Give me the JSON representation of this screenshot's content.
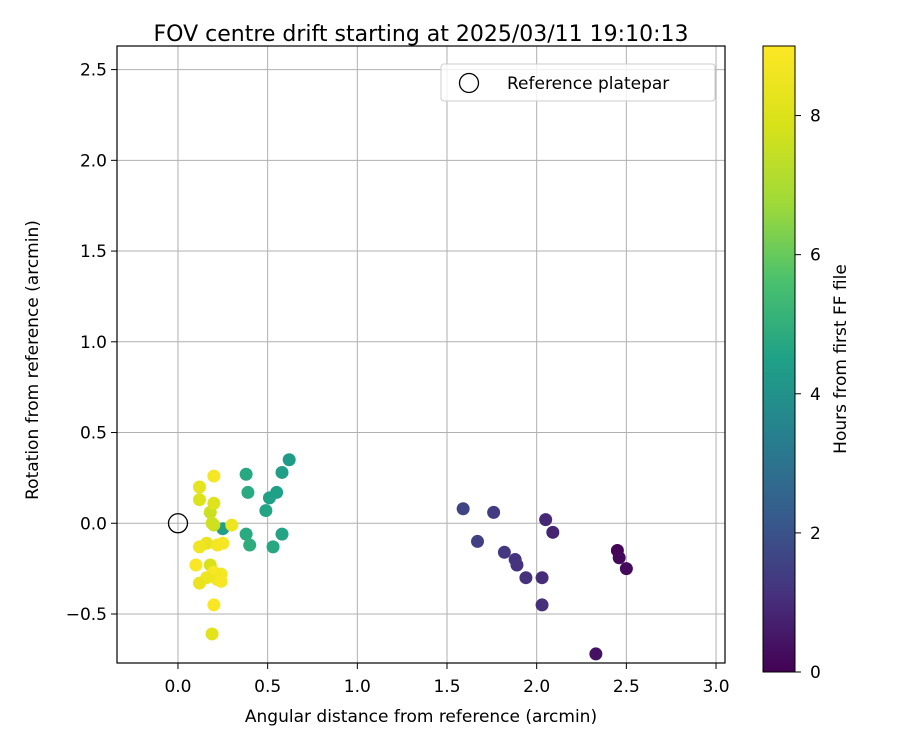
{
  "chart_data": {
    "type": "scatter",
    "title": "FOV centre drift starting at 2025/03/11 19:10:13",
    "xlabel": "Angular distance from reference (arcmin)",
    "ylabel": "Rotation from reference (arcmin)",
    "xlim": [
      -0.34,
      3.05
    ],
    "ylim": [
      -0.77,
      2.63
    ],
    "xticks": [
      0.0,
      0.5,
      1.0,
      1.5,
      2.0,
      2.5,
      3.0
    ],
    "xtick_labels": [
      "0.0",
      "0.5",
      "1.0",
      "1.5",
      "2.0",
      "2.5",
      "3.0"
    ],
    "yticks": [
      -0.5,
      0.0,
      0.5,
      1.0,
      1.5,
      2.0,
      2.5
    ],
    "ytick_labels": [
      "−0.5",
      "0.0",
      "0.5",
      "1.0",
      "1.5",
      "2.0",
      "2.5"
    ],
    "grid": true,
    "legend": {
      "placement": "top-right",
      "entries": [
        {
          "label": "Reference platepar",
          "marker": "open-circle",
          "x": 0.0,
          "y": 0.0
        }
      ]
    },
    "colorbar": {
      "label": "Hours from first FF file",
      "colormap": "viridis",
      "range": [
        0,
        9
      ],
      "ticks": [
        0,
        2,
        4,
        6,
        8
      ],
      "tick_labels": [
        "0",
        "2",
        "4",
        "6",
        "8"
      ]
    },
    "points": [
      {
        "x": 2.45,
        "y": -0.15,
        "c": 0.1
      },
      {
        "x": 2.46,
        "y": -0.19,
        "c": 0.15
      },
      {
        "x": 2.5,
        "y": -0.25,
        "c": 0.2
      },
      {
        "x": 2.33,
        "y": -0.72,
        "c": 0.4
      },
      {
        "x": 2.09,
        "y": -0.05,
        "c": 0.8
      },
      {
        "x": 2.05,
        "y": 0.02,
        "c": 0.9
      },
      {
        "x": 2.03,
        "y": -0.3,
        "c": 1.0
      },
      {
        "x": 2.03,
        "y": -0.45,
        "c": 1.05
      },
      {
        "x": 1.94,
        "y": -0.3,
        "c": 1.1
      },
      {
        "x": 1.89,
        "y": -0.23,
        "c": 1.15
      },
      {
        "x": 1.88,
        "y": -0.2,
        "c": 1.2
      },
      {
        "x": 1.82,
        "y": -0.16,
        "c": 1.3
      },
      {
        "x": 1.76,
        "y": 0.06,
        "c": 1.4
      },
      {
        "x": 1.67,
        "y": -0.1,
        "c": 1.5
      },
      {
        "x": 1.59,
        "y": 0.08,
        "c": 1.6
      },
      {
        "x": 0.62,
        "y": 0.35,
        "c": 4.3
      },
      {
        "x": 0.58,
        "y": 0.28,
        "c": 4.4
      },
      {
        "x": 0.55,
        "y": 0.17,
        "c": 4.5
      },
      {
        "x": 0.51,
        "y": 0.14,
        "c": 4.5
      },
      {
        "x": 0.49,
        "y": 0.07,
        "c": 4.6
      },
      {
        "x": 0.58,
        "y": -0.06,
        "c": 4.6
      },
      {
        "x": 0.53,
        "y": -0.13,
        "c": 4.7
      },
      {
        "x": 0.38,
        "y": 0.27,
        "c": 4.7
      },
      {
        "x": 0.39,
        "y": 0.17,
        "c": 4.8
      },
      {
        "x": 0.38,
        "y": -0.06,
        "c": 4.8
      },
      {
        "x": 0.4,
        "y": -0.12,
        "c": 4.9
      },
      {
        "x": 0.25,
        "y": -0.03,
        "c": 4.4
      },
      {
        "x": 0.2,
        "y": -0.01,
        "c": 7.5
      },
      {
        "x": 0.18,
        "y": 0.06,
        "c": 7.6
      },
      {
        "x": 0.19,
        "y": 0.0,
        "c": 7.7
      },
      {
        "x": 0.12,
        "y": 0.13,
        "c": 8.0
      },
      {
        "x": 0.2,
        "y": 0.11,
        "c": 8.1
      },
      {
        "x": 0.18,
        "y": -0.23,
        "c": 7.9
      },
      {
        "x": 0.12,
        "y": 0.2,
        "c": 8.3
      },
      {
        "x": 0.16,
        "y": -0.11,
        "c": 8.4
      },
      {
        "x": 0.3,
        "y": -0.01,
        "c": 8.5
      },
      {
        "x": 0.2,
        "y": 0.26,
        "c": 8.8
      },
      {
        "x": 0.22,
        "y": -0.12,
        "c": 8.7
      },
      {
        "x": 0.25,
        "y": -0.11,
        "c": 8.8
      },
      {
        "x": 0.12,
        "y": -0.13,
        "c": 8.6
      },
      {
        "x": 0.1,
        "y": -0.23,
        "c": 8.9
      },
      {
        "x": 0.2,
        "y": -0.27,
        "c": 8.8
      },
      {
        "x": 0.24,
        "y": -0.28,
        "c": 8.7
      },
      {
        "x": 0.16,
        "y": -0.3,
        "c": 8.5
      },
      {
        "x": 0.22,
        "y": -0.31,
        "c": 8.6
      },
      {
        "x": 0.24,
        "y": -0.32,
        "c": 8.8
      },
      {
        "x": 0.12,
        "y": -0.33,
        "c": 8.4
      },
      {
        "x": 0.2,
        "y": -0.45,
        "c": 8.9
      },
      {
        "x": 0.19,
        "y": -0.61,
        "c": 8.2
      }
    ]
  }
}
